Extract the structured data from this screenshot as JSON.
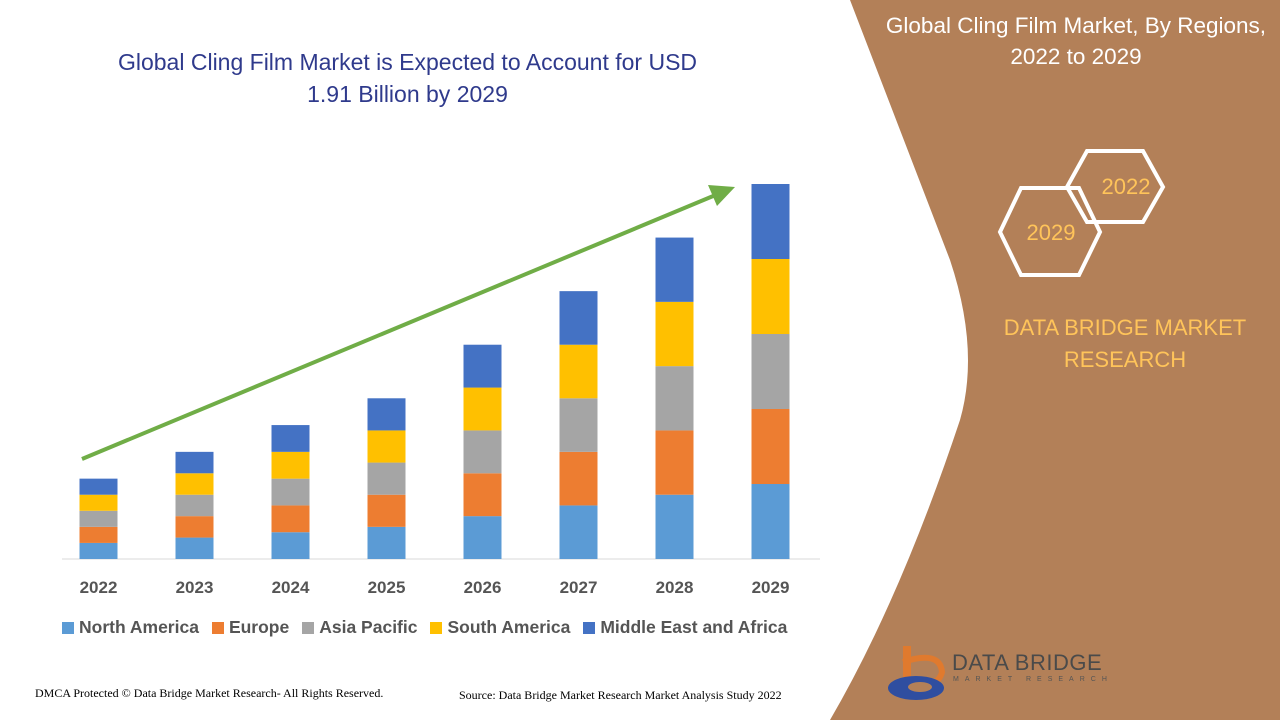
{
  "title": "Global Cling Film Market is Expected to Account for USD 1.91 Billion by 2029",
  "panel": {
    "title": "Global Cling Film Market, By Regions, 2022 to 2029",
    "hex_top": "2022",
    "hex_bottom": "2029",
    "brand": "DATA BRIDGE MARKET RESEARCH",
    "logo_text": "DATA BRIDGE",
    "logo_sub": "MARKET RESEARCH"
  },
  "footer": {
    "left": "DMCA Protected © Data Bridge Market Research- All Rights Reserved.",
    "right": "Source: Data Bridge Market Research Market Analysis Study 2022"
  },
  "colors": {
    "panel_bg": "#b38058",
    "accent": "#ffc45a",
    "arrow": "#70ad47",
    "title": "#2f3a8c"
  },
  "chart_data": {
    "type": "bar",
    "stacked": true,
    "categories": [
      "2022",
      "2023",
      "2024",
      "2025",
      "2026",
      "2027",
      "2028",
      "2029"
    ],
    "series": [
      {
        "name": "North America",
        "color": "#5b9bd5",
        "values": [
          3,
          4,
          5,
          6,
          8,
          10,
          12,
          14
        ]
      },
      {
        "name": "Europe",
        "color": "#ed7d31",
        "values": [
          3,
          4,
          5,
          6,
          8,
          10,
          12,
          14
        ]
      },
      {
        "name": "Asia Pacific",
        "color": "#a5a5a5",
        "values": [
          3,
          4,
          5,
          6,
          8,
          10,
          12,
          14
        ]
      },
      {
        "name": "South America",
        "color": "#ffc000",
        "values": [
          3,
          4,
          5,
          6,
          8,
          10,
          12,
          14
        ]
      },
      {
        "name": "Middle East and Africa",
        "color": "#4472c4",
        "values": [
          3,
          4,
          5,
          6,
          8,
          10,
          12,
          14
        ]
      }
    ],
    "ylim": [
      0,
      70
    ],
    "legend_position": "bottom",
    "trend_arrow": true
  }
}
